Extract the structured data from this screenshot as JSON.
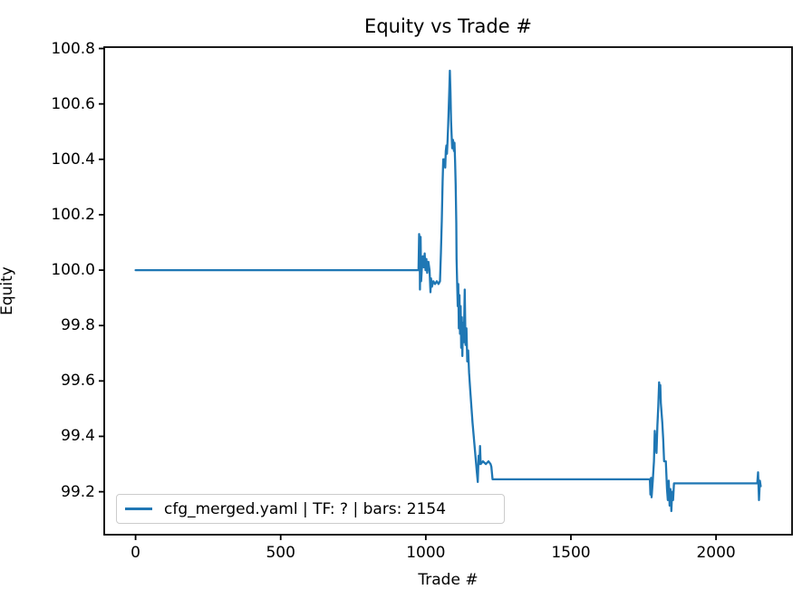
{
  "title": "Equity vs Trade #",
  "axes": {
    "xlabel": "Trade #",
    "ylabel": "Equity"
  },
  "legend": {
    "label": "cfg_merged.yaml | TF: ? | bars: 2154"
  },
  "colors": {
    "line": "#1f77b4",
    "spine": "#000000",
    "tick": "#000000",
    "legend_border": "#cccccc",
    "background": "#ffffff"
  },
  "chart_data": {
    "type": "line",
    "title": "Equity vs Trade #",
    "xlabel": "Trade #",
    "ylabel": "Equity",
    "xlim": [
      -108,
      2262
    ],
    "ylim": [
      99.045,
      100.805
    ],
    "x_ticks": [
      0,
      500,
      1000,
      1500,
      2000
    ],
    "y_ticks": [
      99.2,
      99.4,
      99.6,
      99.8,
      100.0,
      100.2,
      100.4,
      100.6,
      100.8
    ],
    "grid": false,
    "legend_position": "lower left",
    "series": [
      {
        "name": "cfg_merged.yaml | TF: ? | bars: 2154",
        "color": "#1f77b4",
        "points": [
          [
            0,
            100.0
          ],
          [
            975,
            100.0
          ],
          [
            977,
            100.13
          ],
          [
            979,
            100.1
          ],
          [
            980,
            99.93
          ],
          [
            982,
            100.12
          ],
          [
            984,
            99.96
          ],
          [
            987,
            100.02
          ],
          [
            990,
            100.05
          ],
          [
            993,
            100.01
          ],
          [
            996,
            100.06
          ],
          [
            999,
            100.0
          ],
          [
            1002,
            100.04
          ],
          [
            1005,
            99.99
          ],
          [
            1009,
            100.03
          ],
          [
            1013,
            100.0
          ],
          [
            1016,
            99.92
          ],
          [
            1018,
            99.97
          ],
          [
            1021,
            99.94
          ],
          [
            1026,
            99.96
          ],
          [
            1032,
            99.95
          ],
          [
            1038,
            99.96
          ],
          [
            1044,
            99.95
          ],
          [
            1049,
            99.96
          ],
          [
            1052,
            100.06
          ],
          [
            1055,
            100.18
          ],
          [
            1058,
            100.32
          ],
          [
            1060,
            100.4
          ],
          [
            1064,
            100.4
          ],
          [
            1067,
            100.37
          ],
          [
            1069,
            100.43
          ],
          [
            1071,
            100.45
          ],
          [
            1073,
            100.42
          ],
          [
            1075,
            100.47
          ],
          [
            1077,
            100.52
          ],
          [
            1079,
            100.58
          ],
          [
            1081,
            100.65
          ],
          [
            1083,
            100.72
          ],
          [
            1085,
            100.64
          ],
          [
            1087,
            100.54
          ],
          [
            1089,
            100.49
          ],
          [
            1091,
            100.44
          ],
          [
            1094,
            100.47
          ],
          [
            1097,
            100.43
          ],
          [
            1099,
            100.46
          ],
          [
            1101,
            100.39
          ],
          [
            1103,
            100.31
          ],
          [
            1105,
            100.17
          ],
          [
            1106,
            100.04
          ],
          [
            1108,
            99.96
          ],
          [
            1110,
            99.87
          ],
          [
            1112,
            99.95
          ],
          [
            1114,
            99.79
          ],
          [
            1116,
            99.91
          ],
          [
            1118,
            99.77
          ],
          [
            1120,
            99.87
          ],
          [
            1122,
            99.72
          ],
          [
            1124,
            99.83
          ],
          [
            1126,
            99.69
          ],
          [
            1128,
            99.81
          ],
          [
            1131,
            99.74
          ],
          [
            1134,
            99.93
          ],
          [
            1137,
            99.73
          ],
          [
            1140,
            99.79
          ],
          [
            1143,
            99.67
          ],
          [
            1146,
            99.71
          ],
          [
            1149,
            99.63
          ],
          [
            1153,
            99.57
          ],
          [
            1157,
            99.51
          ],
          [
            1161,
            99.45
          ],
          [
            1166,
            99.39
          ],
          [
            1171,
            99.33
          ],
          [
            1176,
            99.27
          ],
          [
            1179,
            99.235
          ],
          [
            1182,
            99.33
          ],
          [
            1185,
            99.3
          ],
          [
            1187,
            99.365
          ],
          [
            1189,
            99.3
          ],
          [
            1197,
            99.31
          ],
          [
            1207,
            99.3
          ],
          [
            1216,
            99.31
          ],
          [
            1223,
            99.3
          ],
          [
            1226,
            99.29
          ],
          [
            1230,
            99.245
          ],
          [
            1772,
            99.245
          ],
          [
            1774,
            99.19
          ],
          [
            1776,
            99.25
          ],
          [
            1778,
            99.18
          ],
          [
            1782,
            99.24
          ],
          [
            1786,
            99.31
          ],
          [
            1789,
            99.42
          ],
          [
            1792,
            99.37
          ],
          [
            1795,
            99.34
          ],
          [
            1798,
            99.44
          ],
          [
            1801,
            99.51
          ],
          [
            1804,
            99.595
          ],
          [
            1806,
            99.56
          ],
          [
            1808,
            99.585
          ],
          [
            1810,
            99.52
          ],
          [
            1812,
            99.49
          ],
          [
            1815,
            99.45
          ],
          [
            1818,
            99.39
          ],
          [
            1821,
            99.31
          ],
          [
            1827,
            99.31
          ],
          [
            1831,
            99.21
          ],
          [
            1834,
            99.17
          ],
          [
            1837,
            99.24
          ],
          [
            1840,
            99.15
          ],
          [
            1843,
            99.21
          ],
          [
            1846,
            99.13
          ],
          [
            1849,
            99.2
          ],
          [
            1852,
            99.17
          ],
          [
            1855,
            99.23
          ],
          [
            2142,
            99.23
          ],
          [
            2145,
            99.27
          ],
          [
            2148,
            99.17
          ],
          [
            2151,
            99.24
          ],
          [
            2154,
            99.22
          ]
        ]
      }
    ]
  }
}
